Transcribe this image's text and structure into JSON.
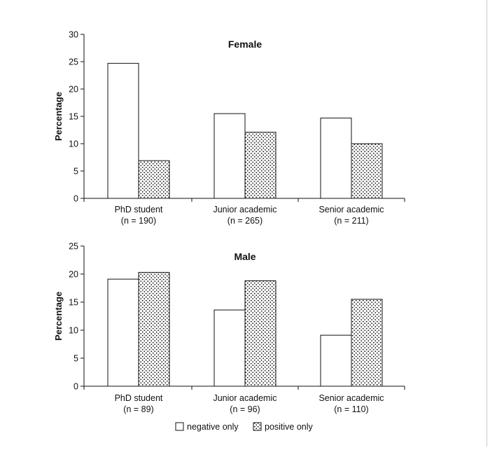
{
  "chart_data": [
    {
      "type": "bar",
      "title": "Female",
      "xlabel": "",
      "ylabel": "Percentage",
      "ylim": [
        0,
        30
      ],
      "yticks": [
        0,
        5,
        10,
        15,
        20,
        25,
        30
      ],
      "categories": [
        "PhD student",
        "Junior academic",
        "Senior academic"
      ],
      "category_n": [
        "(n = 190)",
        "(n = 265)",
        "(n = 211)"
      ],
      "series": [
        {
          "name": "negative only",
          "values": [
            24.7,
            15.5,
            14.7
          ]
        },
        {
          "name": "positive only",
          "values": [
            6.9,
            12.1,
            10.0
          ]
        }
      ]
    },
    {
      "type": "bar",
      "title": "Male",
      "xlabel": "",
      "ylabel": "Percentage",
      "ylim": [
        0,
        25
      ],
      "yticks": [
        0,
        5,
        10,
        15,
        20,
        25
      ],
      "categories": [
        "PhD student",
        "Junior academic",
        "Senior academic"
      ],
      "category_n": [
        "(n = 89)",
        "(n = 96)",
        "(n = 110)"
      ],
      "series": [
        {
          "name": "negative only",
          "values": [
            19.1,
            13.6,
            9.1
          ]
        },
        {
          "name": "positive only",
          "values": [
            20.3,
            18.8,
            15.5
          ]
        }
      ]
    }
  ],
  "legend": [
    {
      "label": "negative only",
      "fill": "plain"
    },
    {
      "label": "positive only",
      "fill": "dotted"
    }
  ],
  "colors": {
    "bar_outline": "#111111",
    "bar_fill": "#ffffff",
    "dot": "#111111"
  }
}
